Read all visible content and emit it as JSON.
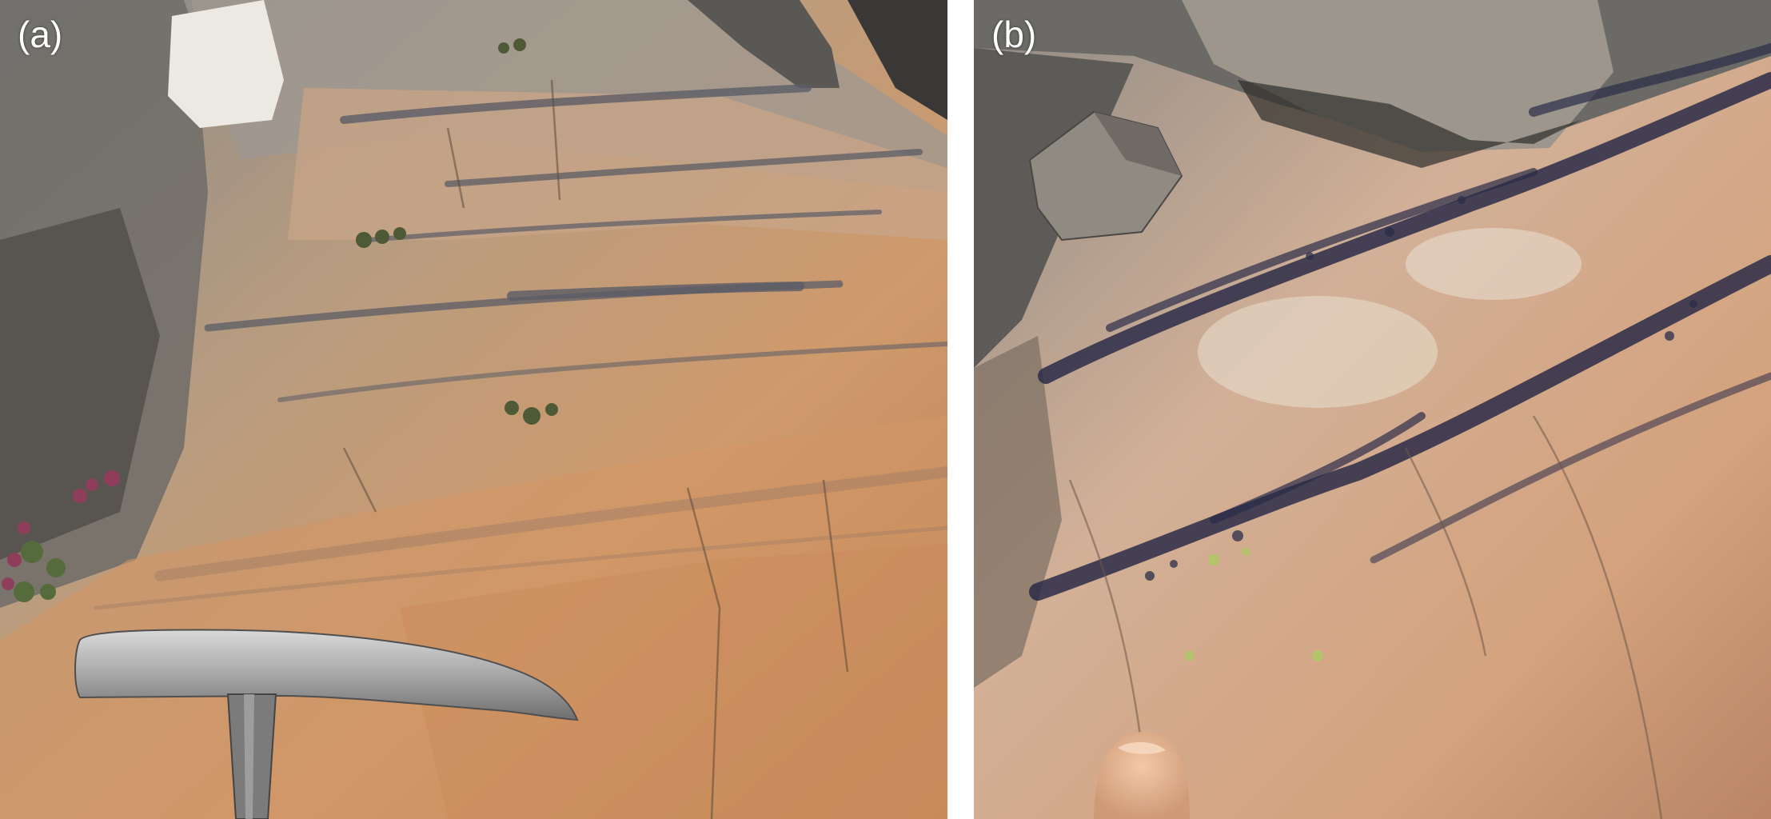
{
  "figure": {
    "panels": [
      {
        "id": "a",
        "label": "(a)"
      },
      {
        "id": "b",
        "label": "(b)"
      }
    ]
  }
}
